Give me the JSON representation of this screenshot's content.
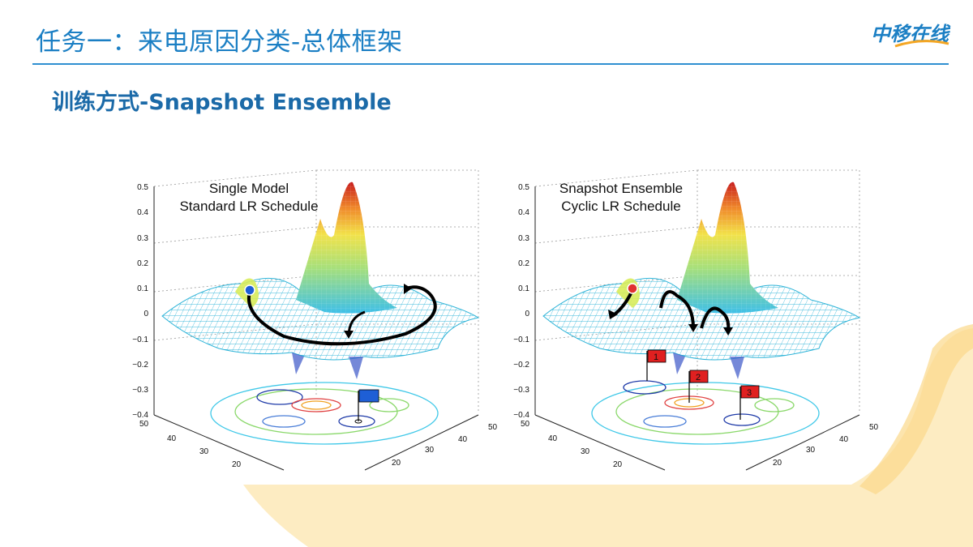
{
  "header": {
    "title": "任务一：来电原因分类-总体框架",
    "logo_text": "中移在线"
  },
  "subtitle": "训练方式-Snapshot Ensemble",
  "colors": {
    "title_blue": "#1b7fc4",
    "subtitle_blue": "#1b6aa8",
    "background_arc": "#fde7b3",
    "standard_marker": "#1e5fd6",
    "snapshot_marker": "#e03030",
    "flag_blue": "#1e5fd6",
    "flag_red": "#e02020"
  },
  "figure": {
    "left_panel": {
      "label_line1": "Single Model",
      "label_line2": "Standard LR Schedule"
    },
    "right_panel": {
      "label_line1": "Snapshot Ensemble",
      "label_line2": "Cyclic LR Schedule"
    },
    "z_ticks": [
      "0.5",
      "0.4",
      "0.3",
      "0.2",
      "0.1",
      "0",
      "−0.1",
      "−0.2",
      "−0.3",
      "−0.4"
    ],
    "left_axis_ticks": [
      "50",
      "40",
      "30",
      "20"
    ],
    "right_axis_ticks": [
      "50",
      "40",
      "30",
      "20"
    ],
    "flags": [
      "1",
      "2",
      "3"
    ]
  }
}
